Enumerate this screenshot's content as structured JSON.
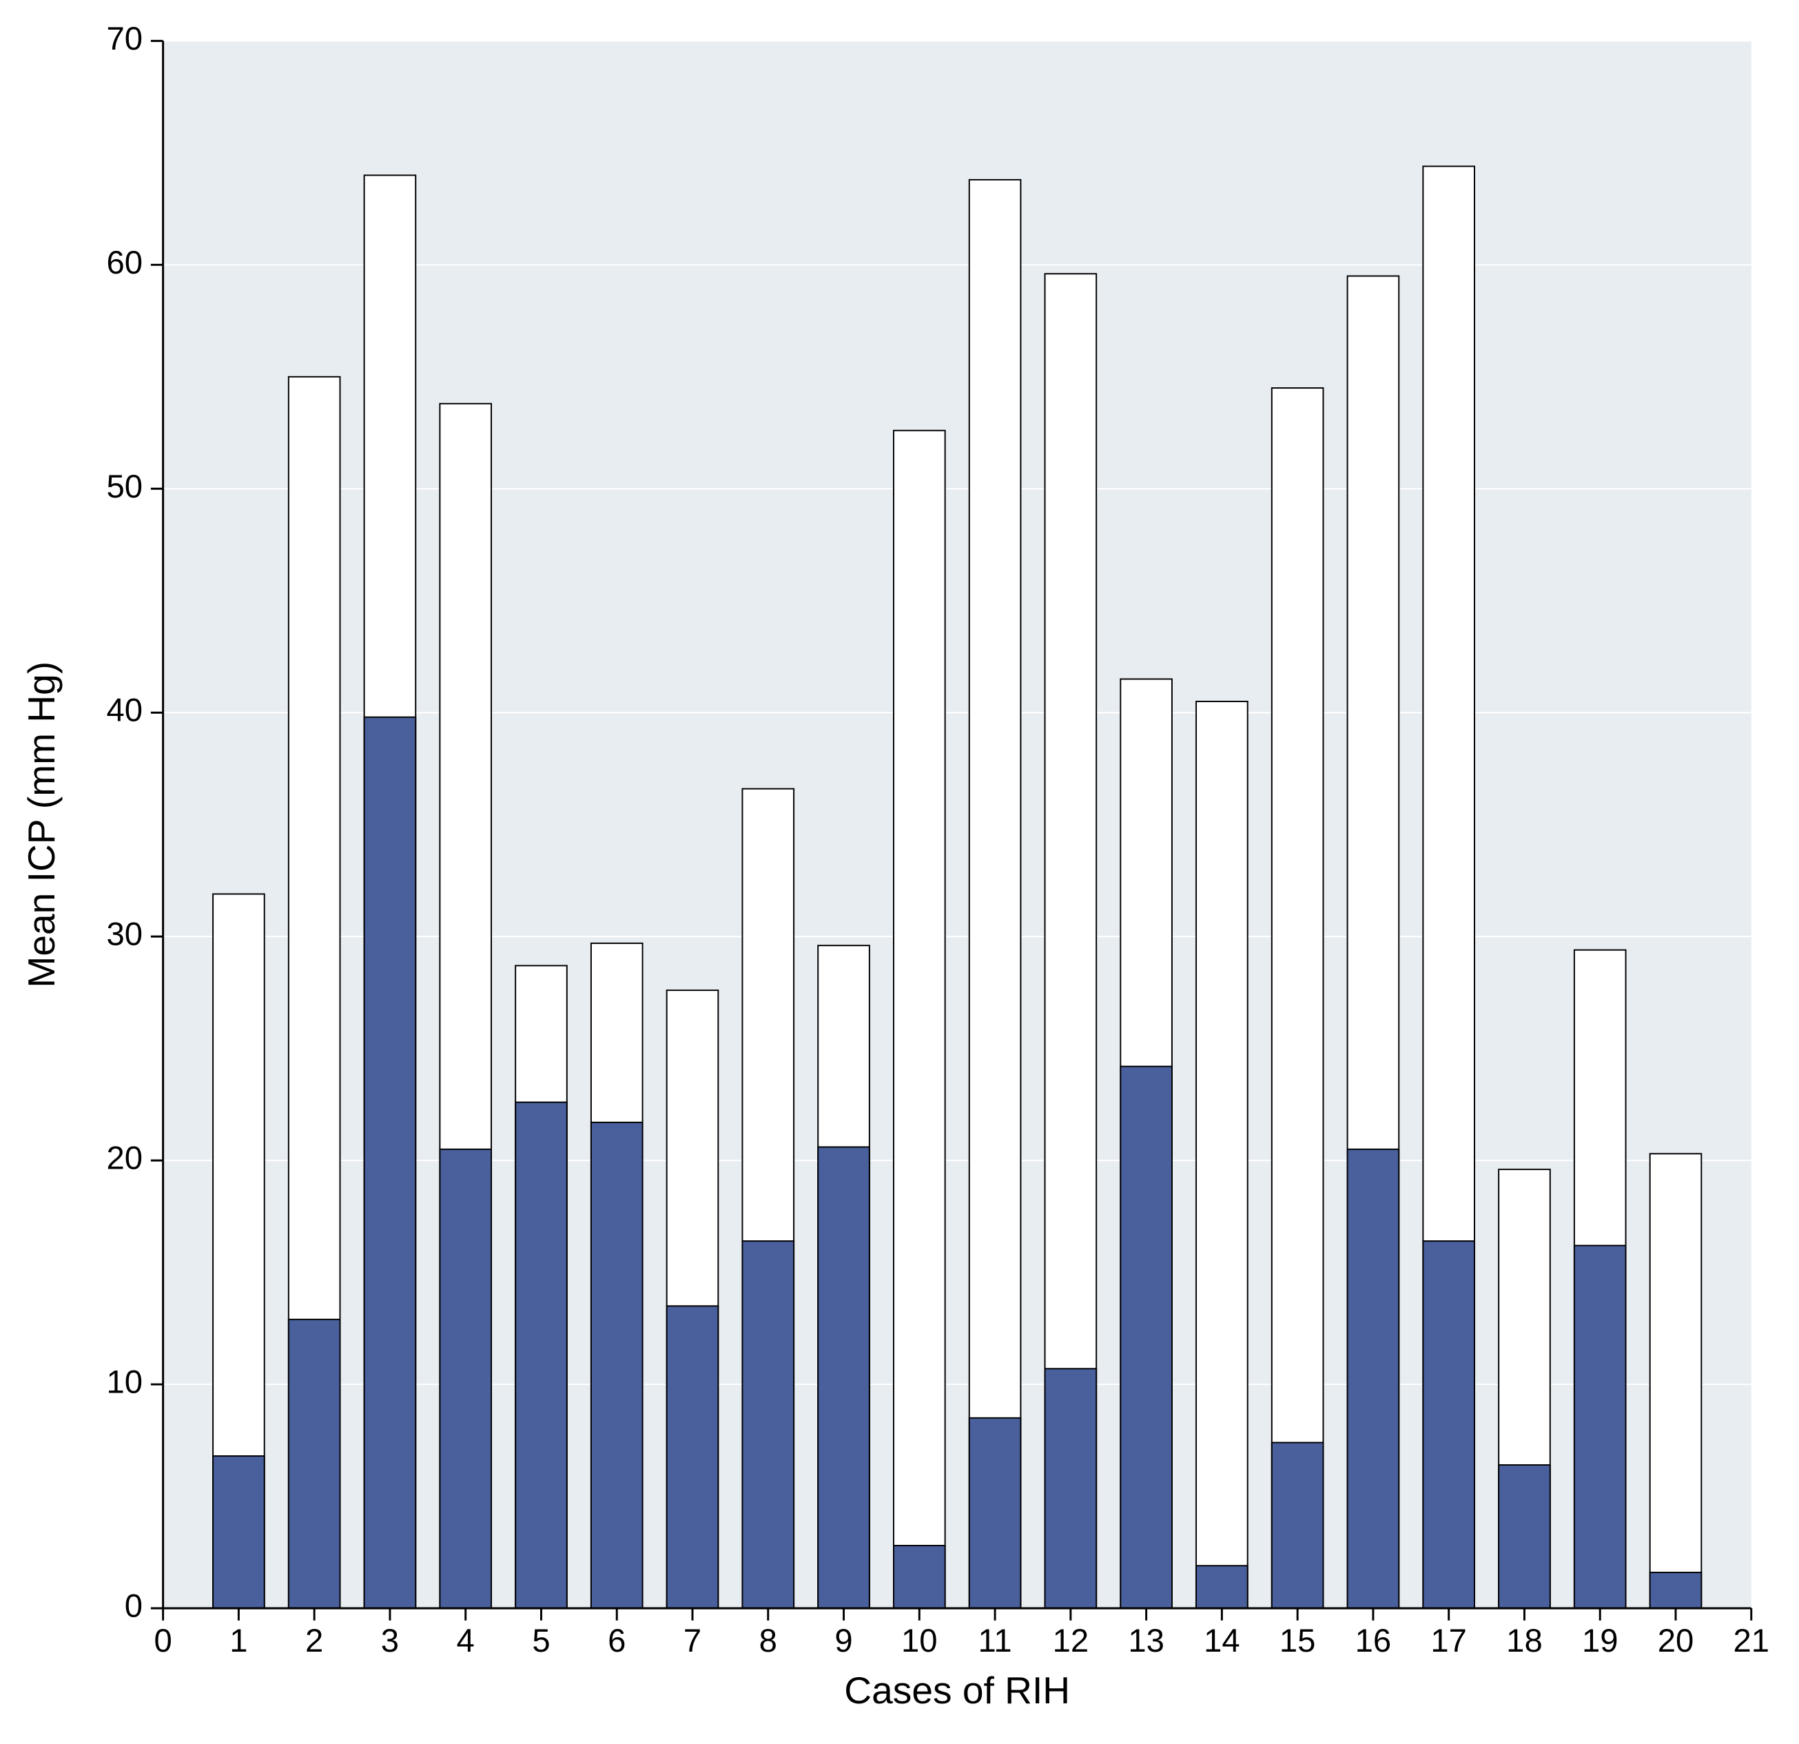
{
  "icp_chart": {
    "type": "bar",
    "ylabel": "Mean ICP (mm Hg)",
    "xlabel": "Cases of RIH",
    "ylim": [
      0,
      70
    ],
    "ytick_step": 10,
    "xlim": [
      0,
      21
    ],
    "xtick_step": 1,
    "label_fontsize": 28,
    "tick_fontsize": 24,
    "background_color": "#e8edf2",
    "plot_background_color": "#e8edf2",
    "grid_color": "#ffffff",
    "axis_color": "#000000",
    "bar_fill_color": "#4a609c",
    "bar_outline_color": "#000000",
    "overlay_fill_color": "#ffffff",
    "overlay_outline_color": "#000000",
    "bar_width": 0.68,
    "axis_line_width": 3,
    "grid_line_width": 2,
    "bar_stroke_width": 2,
    "categories": [
      1,
      2,
      3,
      4,
      5,
      6,
      7,
      8,
      9,
      10,
      11,
      12,
      13,
      14,
      15,
      16,
      17,
      18,
      19,
      20
    ],
    "values_back": [
      31.9,
      55.0,
      64.0,
      53.8,
      28.7,
      29.7,
      27.6,
      36.6,
      29.6,
      52.6,
      63.8,
      59.6,
      41.5,
      40.5,
      54.5,
      59.5,
      64.4,
      19.6,
      29.4,
      20.3
    ],
    "values_front": [
      6.8,
      12.9,
      39.8,
      20.5,
      22.6,
      21.7,
      13.5,
      16.4,
      20.6,
      2.8,
      8.5,
      10.7,
      24.2,
      1.9,
      7.4,
      20.5,
      16.4,
      6.4,
      16.2,
      1.6
    ],
    "yticks": [
      0,
      10,
      20,
      30,
      40,
      50,
      60,
      70
    ],
    "xticks": [
      0,
      1,
      2,
      3,
      4,
      5,
      6,
      7,
      8,
      9,
      10,
      11,
      12,
      13,
      14,
      15,
      16,
      17,
      18,
      19,
      20,
      21
    ]
  }
}
